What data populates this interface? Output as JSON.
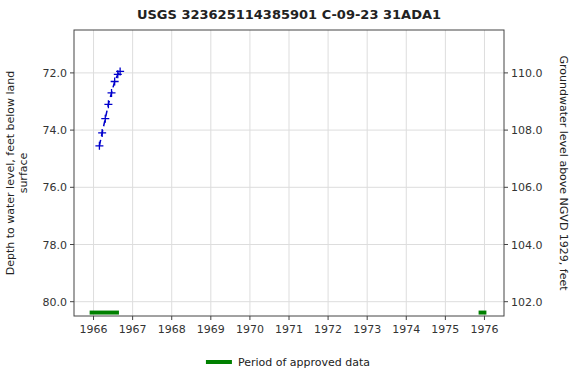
{
  "chart_data": {
    "type": "line",
    "title": "USGS 323625114385901 C-09-23 31ADA1",
    "y_label": "Depth to water level, feet below land\nsurface",
    "y2_label": "Groundwater level above NGVD 1929, feet",
    "x": [
      1966.15,
      1966.22,
      1966.3,
      1966.38,
      1966.46,
      1966.54,
      1966.62,
      1966.68
    ],
    "series": [
      {
        "values": [
          74.55,
          74.1,
          73.6,
          73.1,
          72.7,
          72.3,
          72.05,
          71.95
        ],
        "color": "#0000cc",
        "line_style": "dashed",
        "marker": "+"
      }
    ],
    "approved_periods": {
      "name": "Period of approved data",
      "color": "#008000",
      "y": 80.38,
      "ranges": [
        [
          1965.9,
          1966.65
        ],
        [
          1975.85,
          1976.05
        ]
      ]
    },
    "xlim": [
      1965.5,
      1976.5
    ],
    "xticks": [
      1966,
      1967,
      1968,
      1969,
      1970,
      1971,
      1972,
      1973,
      1974,
      1975,
      1976
    ],
    "ylim": [
      80.5,
      70.5
    ],
    "yticks": [
      {
        "value": 72.0,
        "label": "72.0"
      },
      {
        "value": 74.0,
        "label": "74.0"
      },
      {
        "value": 76.0,
        "label": "76.0"
      },
      {
        "value": 78.0,
        "label": "78.0"
      },
      {
        "value": 80.0,
        "label": "80.0"
      }
    ],
    "y2lim": [
      101.5,
      111.5
    ],
    "y2ticks": [
      {
        "value": 110.0,
        "label": "110.0"
      },
      {
        "value": 108.0,
        "label": "108.0"
      },
      {
        "value": 106.0,
        "label": "106.0"
      },
      {
        "value": 104.0,
        "label": "104.0"
      },
      {
        "value": 102.0,
        "label": "102.0"
      }
    ],
    "grid": true,
    "legend": "bottom"
  }
}
